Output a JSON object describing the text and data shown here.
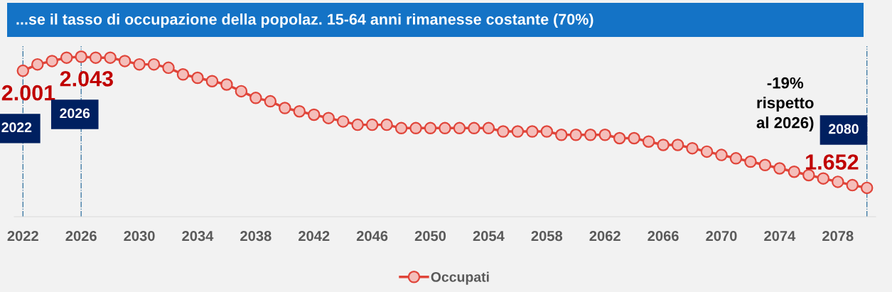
{
  "chart_data": {
    "type": "line",
    "title": "...se il tasso di occupazione della popolaz. 15-64 anni rimanesse costante (70%)",
    "x": [
      2022,
      2023,
      2024,
      2025,
      2026,
      2027,
      2028,
      2029,
      2030,
      2031,
      2032,
      2033,
      2034,
      2035,
      2036,
      2037,
      2038,
      2039,
      2040,
      2041,
      2042,
      2043,
      2044,
      2045,
      2046,
      2047,
      2048,
      2049,
      2050,
      2051,
      2052,
      2053,
      2054,
      2055,
      2056,
      2057,
      2058,
      2059,
      2060,
      2061,
      2062,
      2063,
      2064,
      2065,
      2066,
      2067,
      2068,
      2069,
      2070,
      2071,
      2072,
      2073,
      2074,
      2075,
      2076,
      2077,
      2078,
      2079,
      2080
    ],
    "series": [
      {
        "name": "Occupati",
        "color": "#e0453a",
        "values": [
          2.001,
          2.02,
          2.03,
          2.04,
          2.043,
          2.04,
          2.04,
          2.03,
          2.02,
          2.02,
          2.01,
          1.99,
          1.98,
          1.97,
          1.96,
          1.94,
          1.92,
          1.91,
          1.89,
          1.88,
          1.87,
          1.86,
          1.85,
          1.84,
          1.84,
          1.84,
          1.83,
          1.83,
          1.83,
          1.83,
          1.83,
          1.83,
          1.83,
          1.82,
          1.82,
          1.82,
          1.82,
          1.81,
          1.81,
          1.81,
          1.81,
          1.8,
          1.8,
          1.79,
          1.78,
          1.78,
          1.77,
          1.76,
          1.75,
          1.74,
          1.73,
          1.72,
          1.71,
          1.7,
          1.69,
          1.68,
          1.67,
          1.66,
          1.652
        ],
        "value_labels": [
          "2.001",
          null,
          null,
          null,
          "2.043",
          null,
          null,
          null,
          null,
          null,
          null,
          null,
          null,
          null,
          null,
          null,
          null,
          null,
          null,
          null,
          null,
          null,
          null,
          null,
          null,
          null,
          null,
          null,
          null,
          null,
          null,
          null,
          null,
          null,
          null,
          null,
          null,
          null,
          null,
          null,
          null,
          null,
          null,
          null,
          null,
          null,
          null,
          null,
          null,
          null,
          null,
          null,
          null,
          null,
          null,
          null,
          null,
          null,
          "1.652"
        ]
      }
    ],
    "xlim": [
      2021.4,
      2080.6
    ],
    "xticks": [
      2022,
      2026,
      2030,
      2034,
      2038,
      2042,
      2046,
      2050,
      2054,
      2058,
      2062,
      2066,
      2070,
      2074,
      2078
    ],
    "tick_labels": "x",
    "ref_lines": [
      {
        "axis": "x",
        "value": 2022,
        "label": "2022",
        "color": "#2e6f9e",
        "line_style": "dashdot"
      },
      {
        "axis": "x",
        "value": 2026,
        "label": "2026",
        "color": "#2e6f9e",
        "line_style": "dashdot"
      },
      {
        "axis": "x",
        "value": 2080,
        "label": "2080",
        "color": "#2e6f9e",
        "line_style": "dashdot"
      }
    ],
    "annotations": [
      "-19%\nrispetto\nal 2026)"
    ],
    "marker": "circle",
    "line_style": "solid",
    "grid": false,
    "legend": "bottom"
  }
}
